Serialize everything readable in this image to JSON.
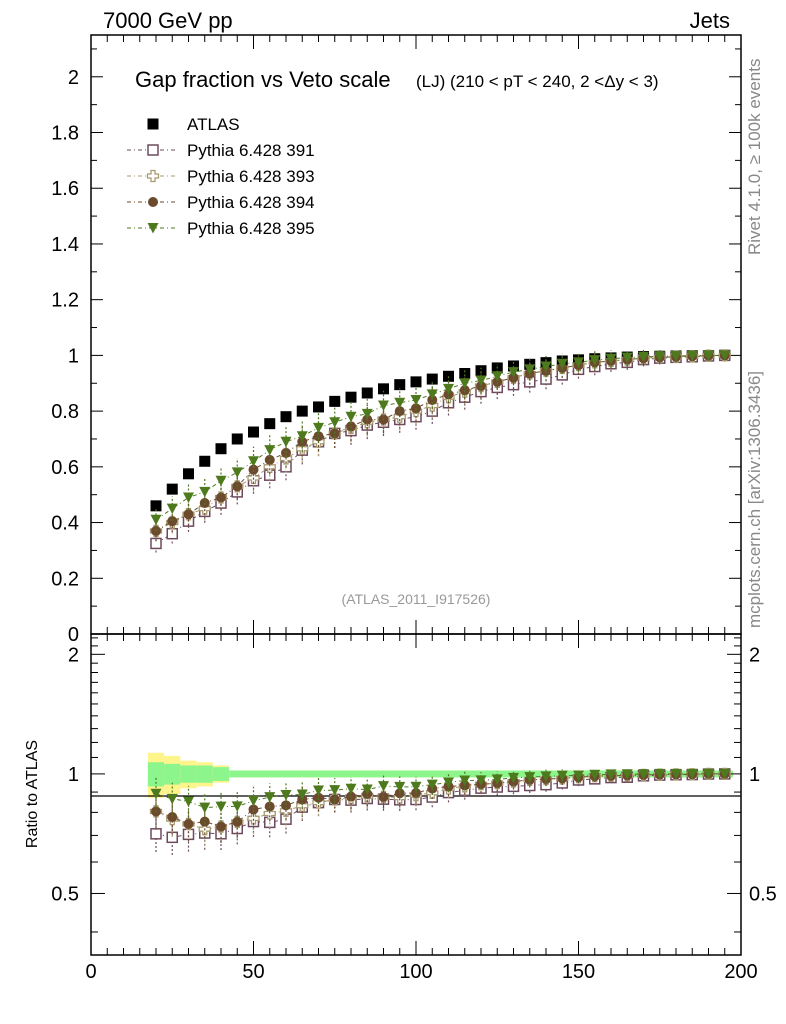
{
  "header": {
    "left": "7000 GeV pp",
    "right": "Jets"
  },
  "side_labels": {
    "rivet": "Rivet 4.1.0, ≥ 100k events",
    "mcplots": "mcplots.cern.ch [arXiv:1306.3436]"
  },
  "analysis_tag": "(ATLAS_2011_I917526)",
  "colors": {
    "atlas": "#000000",
    "p391": "#6e4a5e",
    "p393": "#a89a70",
    "p394": "#6b4a2e",
    "p395": "#4e7a1e",
    "band_inner": "#8cf58c",
    "band_outer": "#fdf58c"
  },
  "chart_data": [
    {
      "type": "scatter",
      "panel": "main",
      "title": "Gap fraction vs Veto scale",
      "subtitle": "(LJ) (210 < pT < 240, 2 <Δy < 3)",
      "xlabel": "",
      "ylabel": "",
      "xlim": [
        0,
        200
      ],
      "ylim": [
        0,
        2.15
      ],
      "yticks": [
        0,
        0.2,
        0.4,
        0.6,
        0.8,
        1,
        1.2,
        1.4,
        1.6,
        1.8,
        2
      ],
      "ytick_labels": [
        "0",
        "0.2",
        "0.4",
        "0.6",
        "0.8",
        "1",
        "1.2",
        "1.4",
        "1.6",
        "1.8",
        "2"
      ],
      "legend_position": "top-left",
      "x": [
        20,
        25,
        30,
        35,
        40,
        45,
        50,
        55,
        60,
        65,
        70,
        75,
        80,
        85,
        90,
        95,
        100,
        105,
        110,
        115,
        120,
        125,
        130,
        135,
        140,
        145,
        150,
        155,
        160,
        165,
        170,
        175,
        180,
        185,
        190,
        195
      ],
      "series": [
        {
          "name": "ATLAS",
          "marker": "filled-square",
          "values": [
            0.46,
            0.52,
            0.575,
            0.62,
            0.665,
            0.7,
            0.725,
            0.755,
            0.78,
            0.8,
            0.815,
            0.835,
            0.85,
            0.865,
            0.88,
            0.895,
            0.905,
            0.915,
            0.925,
            0.935,
            0.945,
            0.955,
            0.962,
            0.968,
            0.974,
            0.98,
            0.984,
            0.988,
            0.991,
            0.994,
            0.996,
            0.997,
            0.998,
            0.999,
            0.999,
            1.0
          ]
        },
        {
          "name": "Pythia 6.428 391",
          "marker": "open-square",
          "values": [
            0.325,
            0.36,
            0.405,
            0.44,
            0.47,
            0.51,
            0.55,
            0.57,
            0.6,
            0.66,
            0.69,
            0.72,
            0.73,
            0.75,
            0.76,
            0.77,
            0.78,
            0.8,
            0.83,
            0.85,
            0.87,
            0.885,
            0.895,
            0.905,
            0.915,
            0.93,
            0.95,
            0.96,
            0.97,
            0.975,
            0.985,
            0.99,
            0.993,
            0.995,
            0.998,
            1.0
          ]
        },
        {
          "name": "Pythia 6.428 393",
          "marker": "open-cross",
          "values": [
            0.37,
            0.4,
            0.43,
            0.45,
            0.49,
            0.53,
            0.56,
            0.6,
            0.63,
            0.665,
            0.69,
            0.72,
            0.74,
            0.76,
            0.77,
            0.78,
            0.8,
            0.82,
            0.85,
            0.87,
            0.89,
            0.905,
            0.92,
            0.935,
            0.945,
            0.955,
            0.965,
            0.975,
            0.98,
            0.985,
            0.99,
            0.993,
            0.995,
            0.997,
            0.999,
            1.0
          ]
        },
        {
          "name": "Pythia 6.428 394",
          "marker": "filled-circle",
          "values": [
            0.37,
            0.405,
            0.43,
            0.47,
            0.49,
            0.53,
            0.59,
            0.625,
            0.65,
            0.69,
            0.71,
            0.72,
            0.745,
            0.77,
            0.77,
            0.8,
            0.81,
            0.84,
            0.86,
            0.875,
            0.89,
            0.905,
            0.92,
            0.935,
            0.945,
            0.955,
            0.965,
            0.975,
            0.98,
            0.985,
            0.99,
            0.993,
            0.995,
            0.997,
            0.999,
            1.0
          ]
        },
        {
          "name": "Pythia 6.428 395",
          "marker": "filled-triangle-down",
          "values": [
            0.41,
            0.45,
            0.49,
            0.51,
            0.55,
            0.58,
            0.62,
            0.66,
            0.69,
            0.71,
            0.74,
            0.76,
            0.78,
            0.79,
            0.82,
            0.83,
            0.84,
            0.86,
            0.88,
            0.9,
            0.91,
            0.925,
            0.94,
            0.95,
            0.96,
            0.97,
            0.975,
            0.983,
            0.988,
            0.992,
            0.995,
            0.997,
            0.998,
            0.999,
            1.0,
            1.0
          ]
        }
      ],
      "mc_error_rel": 0.1
    },
    {
      "type": "scatter",
      "panel": "ratio",
      "ylabel": "Ratio to ATLAS",
      "xlim": [
        0,
        200
      ],
      "ylim": [
        0.35,
        2.25
      ],
      "yscale": "log",
      "yticks": [
        0.5,
        1,
        2
      ],
      "ytick_labels": [
        "0.5",
        "1",
        "2"
      ],
      "xticks": [
        0,
        50,
        100,
        150,
        200
      ],
      "xtick_labels": [
        "0",
        "50",
        "100",
        "150",
        "200"
      ],
      "data_band": {
        "x_edges": [
          17.5,
          22.5,
          27.5,
          32.5,
          37.5,
          42.5,
          197.5
        ],
        "inner": [
          0.07,
          0.06,
          0.05,
          0.05,
          0.04,
          0.02
        ],
        "outer": [
          0.13,
          0.11,
          0.08,
          0.07,
          0.05,
          0.02
        ]
      }
    }
  ]
}
